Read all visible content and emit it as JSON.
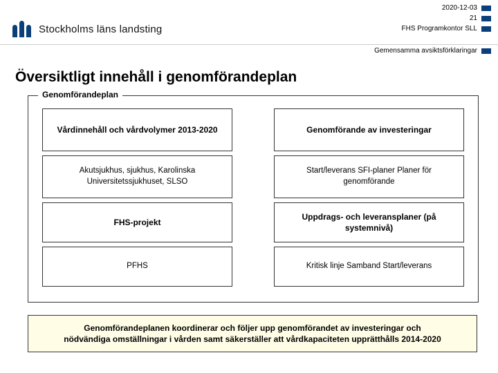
{
  "header": {
    "date": "2020-12-03",
    "page_number": "21",
    "org_line": "FHS Programkontor SLL",
    "subtitle": "Gemensamma avsiktsförklaringar",
    "brand": "Stockholms läns landsting",
    "accent_color": "#0a3f7a"
  },
  "title": "Översiktligt innehåll i genomförandeplan",
  "group": {
    "legend": "Genomförandeplan",
    "left": [
      {
        "heading": "Vårdinnehåll och vårdvolymer 2013-2020",
        "sub": "Akutsjukhus, sjukhus, Karolinska Universitetssjukhuset, SLSO"
      },
      {
        "heading": "FHS-projekt",
        "sub": "PFHS"
      }
    ],
    "right": [
      {
        "heading": "Genomförande av investeringar",
        "sub": "Start/leverans SFI-planer Planer för genomförande"
      },
      {
        "heading": "Uppdrags- och leveransplaner (på systemnivå)",
        "sub": "Kritisk linje Samband Start/leverans"
      }
    ]
  },
  "footer": "Genomförandeplanen koordinerar och följer upp genomförandet av investeringar och nödvändiga omställningar i vården samt säkerställer att vårdkapaciteten upprätthålls 2014-2020",
  "colors": {
    "footer_bg": "#fffde6",
    "border": "#333333",
    "text": "#000000"
  }
}
